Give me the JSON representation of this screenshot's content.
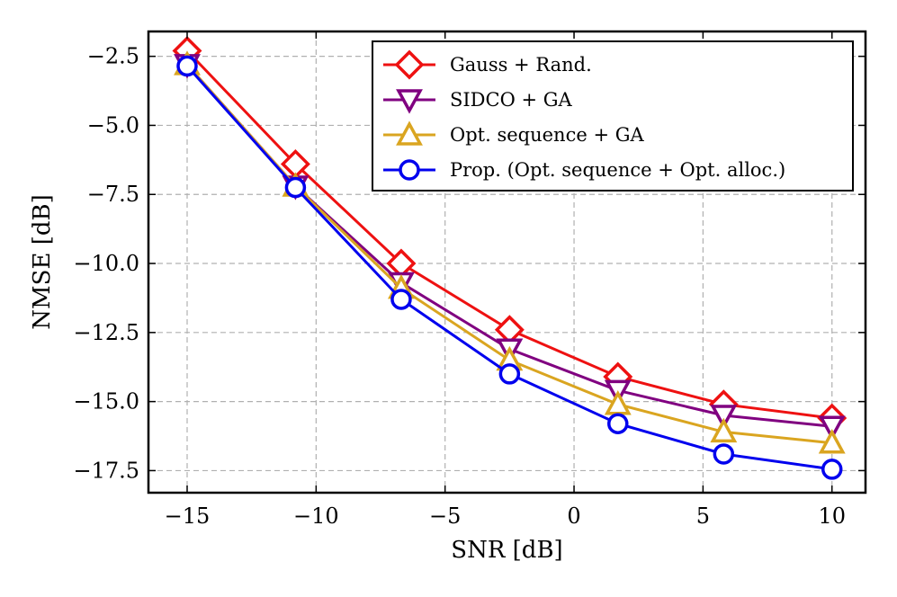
{
  "chart_data": {
    "type": "line",
    "xlabel": "SNR [dB]",
    "ylabel": "NMSE [dB]",
    "xlim": [
      -16.5,
      11.3
    ],
    "ylim": [
      -18.3,
      -1.6
    ],
    "xticks": [
      -15,
      -10,
      -5,
      0,
      5,
      10
    ],
    "xtick_labels": [
      "−15",
      "−10",
      "−5",
      "0",
      "5",
      "10"
    ],
    "yticks": [
      -2.5,
      -5.0,
      -7.5,
      -10.0,
      -12.5,
      -15.0,
      -17.5
    ],
    "ytick_labels": [
      "−2.5",
      "−5.0",
      "−7.5",
      "−10.0",
      "−12.5",
      "−15.0",
      "−17.5"
    ],
    "grid": true,
    "legend_position": "top-right",
    "x": [
      -15,
      -10.8,
      -6.7,
      -2.5,
      1.7,
      5.8,
      10
    ],
    "series": [
      {
        "name": "Gauss + Rand.",
        "color": "#ee1111",
        "marker": "diamond",
        "values": [
          -2.3,
          -6.4,
          -10.0,
          -12.4,
          -14.1,
          -15.1,
          -15.6
        ]
      },
      {
        "name": "SIDCO + GA",
        "color": "#800080",
        "marker": "triangle-down",
        "values": [
          -2.8,
          -7.2,
          -10.7,
          -13.1,
          -14.6,
          -15.5,
          -15.9
        ]
      },
      {
        "name": "Opt. sequence + GA",
        "color": "#daa520",
        "marker": "triangle-up",
        "values": [
          -2.8,
          -7.2,
          -10.9,
          -13.5,
          -15.1,
          -16.1,
          -16.5
        ]
      },
      {
        "name": "Prop. (Opt. sequence + Opt. alloc.)",
        "color": "#0000ee",
        "marker": "circle",
        "values": [
          -2.85,
          -7.25,
          -11.3,
          -14.0,
          -15.8,
          -16.9,
          -17.45
        ]
      }
    ]
  }
}
